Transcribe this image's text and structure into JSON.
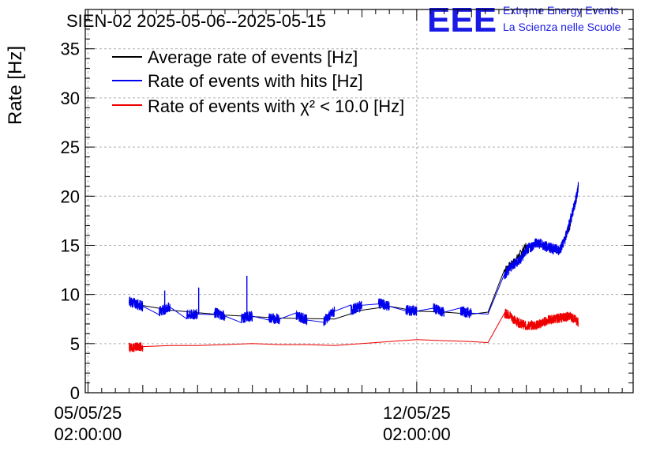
{
  "chart_data": {
    "type": "line",
    "title": "SIEN-02 2025-05-06--2025-05-15",
    "logo": {
      "mark": "EEE",
      "line1": "Extreme Energy Events",
      "line2": "La Scienza nelle Scuole"
    },
    "ylabel": "Rate [Hz]",
    "xlabel": "",
    "ylim": [
      0,
      39
    ],
    "xlim_days": [
      -0.05,
      9.95
    ],
    "x_unit": "days since 05/05/25 02:00:00",
    "grid": true,
    "legend_position": "top-left",
    "yticks": [
      0,
      5,
      10,
      15,
      20,
      25,
      30,
      35
    ],
    "xticks": [
      {
        "value": 0,
        "line1": "05/05/25",
        "line2": "02:00:00"
      },
      {
        "value": 6,
        "line1": "12/05/25",
        "line2": "02:00:00"
      }
    ],
    "series": [
      {
        "name": "Average rate of events [Hz]",
        "color": "#000000",
        "x": [
          0.75,
          1.5,
          2.5,
          3.5,
          4.5,
          5.0,
          5.5,
          6.0,
          6.5,
          7.0,
          7.3,
          7.6,
          7.8,
          8.0,
          8.3,
          8.6,
          8.8,
          8.95
        ],
        "values": [
          9.1,
          8.4,
          7.9,
          7.6,
          7.5,
          8.4,
          8.8,
          8.3,
          8.2,
          8.0,
          8.2,
          12.5,
          13.5,
          15.0,
          14.8,
          14.5,
          17.0,
          21.0
        ]
      },
      {
        "name": "Rate of events with hits [Hz]",
        "color": "#0000ee",
        "x": [
          0.75,
          1.0,
          1.3,
          1.5,
          1.8,
          2.0,
          2.3,
          2.5,
          2.8,
          3.0,
          3.3,
          3.5,
          3.8,
          4.0,
          4.3,
          4.5,
          4.8,
          5.0,
          5.3,
          5.5,
          5.8,
          6.0,
          6.3,
          6.5,
          6.8,
          7.0,
          7.3,
          7.6,
          7.75,
          7.9,
          8.0,
          8.2,
          8.4,
          8.6,
          8.7,
          8.8,
          8.9,
          8.95
        ],
        "values": [
          9.3,
          8.8,
          8.3,
          8.7,
          7.9,
          8.0,
          8.2,
          7.8,
          7.6,
          7.8,
          7.6,
          7.5,
          7.9,
          7.4,
          7.3,
          8.3,
          8.4,
          8.9,
          9.1,
          8.8,
          8.4,
          8.3,
          8.6,
          8.2,
          8.3,
          8.1,
          8.0,
          12.0,
          13.0,
          13.6,
          14.5,
          15.3,
          14.8,
          14.5,
          15.5,
          17.5,
          19.5,
          21.0
        ]
      },
      {
        "name": "Rate of events with χ² < 10.0 [Hz]",
        "color": "#ee0000",
        "x": [
          0.75,
          1.0,
          1.5,
          2.0,
          2.5,
          3.0,
          3.5,
          4.0,
          4.5,
          5.0,
          5.5,
          6.0,
          6.5,
          7.0,
          7.3,
          7.6,
          7.7,
          7.8,
          8.0,
          8.2,
          8.4,
          8.6,
          8.8,
          8.95
        ],
        "values": [
          4.6,
          4.7,
          4.8,
          4.8,
          4.9,
          5.0,
          4.9,
          4.9,
          4.8,
          5.0,
          5.2,
          5.4,
          5.3,
          5.2,
          5.1,
          8.1,
          7.9,
          7.3,
          6.8,
          6.9,
          7.4,
          7.6,
          7.8,
          7.2
        ]
      }
    ],
    "spikes": [
      {
        "x": 1.4,
        "y": 10.4,
        "base": 8.6
      },
      {
        "x": 2.02,
        "y": 10.7,
        "base": 8.0
      },
      {
        "x": 2.9,
        "y": 11.9,
        "base": 7.8
      }
    ],
    "legend_entries": [
      {
        "text": "Average rate of events [Hz]",
        "color": "#000000"
      },
      {
        "text": "Rate of events with hits [Hz]",
        "color": "#0000ee"
      },
      {
        "text": "Rate of events with χ² < 10.0 [Hz]",
        "color": "#ee0000"
      }
    ]
  }
}
